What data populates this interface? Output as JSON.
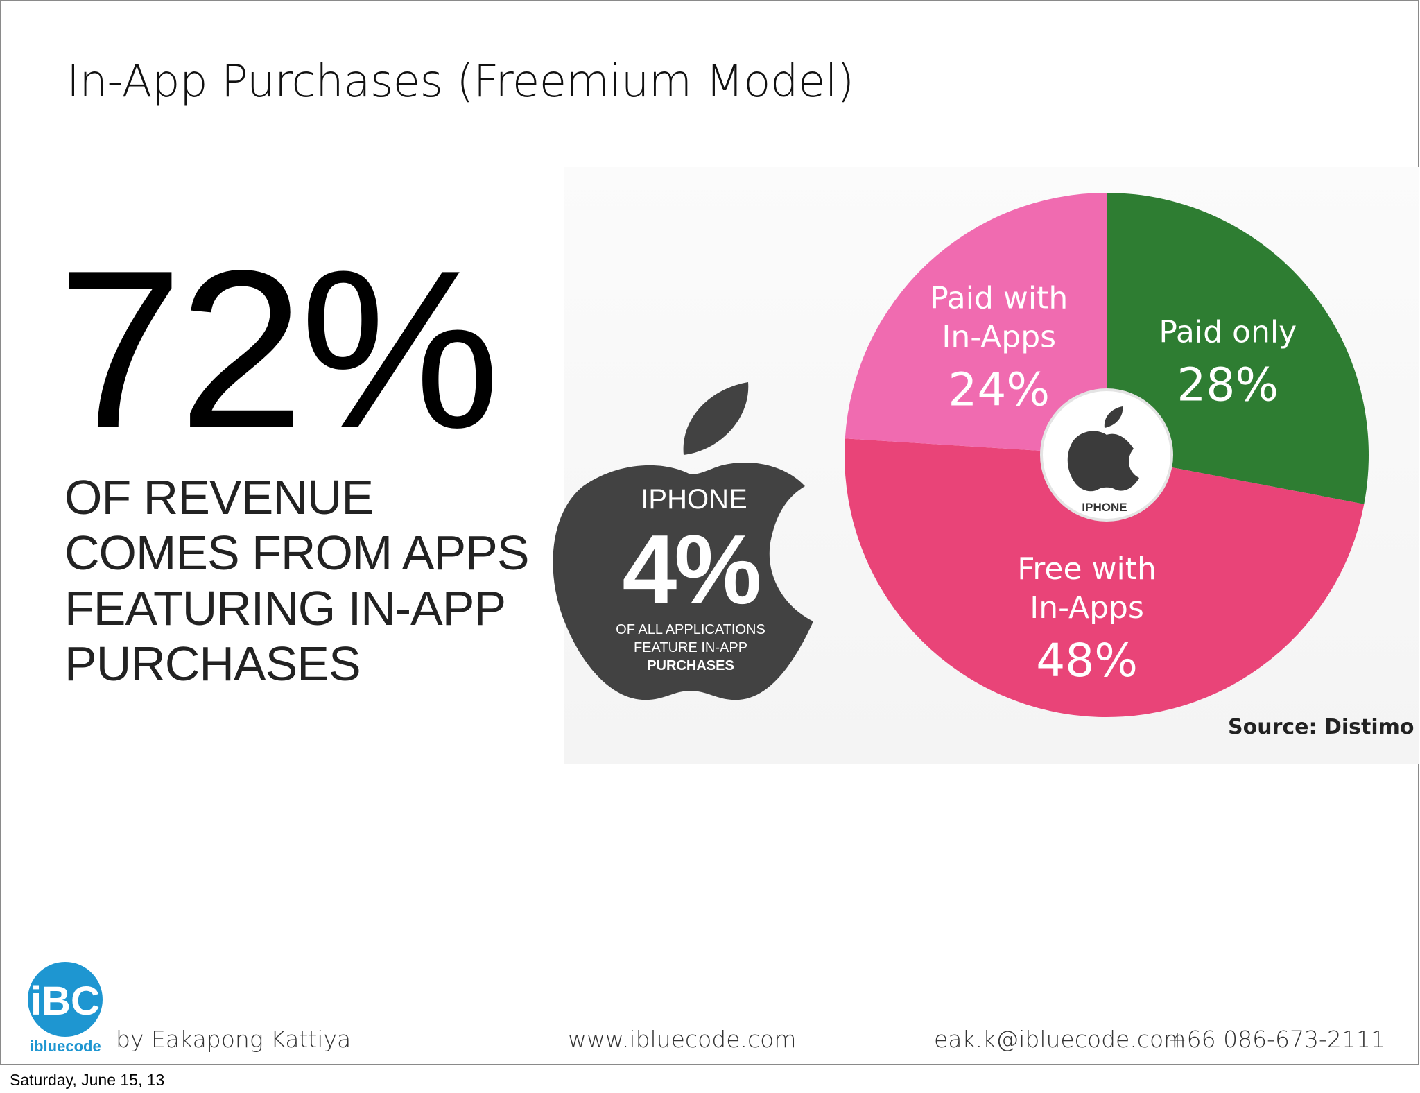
{
  "slide": {
    "title": "In-App Purchases (Freemium Model)"
  },
  "headline_stat": {
    "value": "72%",
    "caption": "OF REVENUE\nCOMES FROM APPS\nFEATURING IN-APP\nPURCHASES"
  },
  "apple_badge": {
    "device": "IPHONE",
    "value": "4%",
    "description_line1": "OF ALL APPLICATIONS",
    "description_line2": "FEATURE IN-APP",
    "description_line3": "PURCHASES",
    "color": "#424242",
    "icon": "apple-logo-icon"
  },
  "chart_data": {
    "type": "pie",
    "center_label": "IPHONE",
    "center_icon": "apple-logo-icon",
    "slices": [
      {
        "label_line1": "Paid only",
        "label_line2": "",
        "value": 28,
        "display": "28%",
        "color": "#2e7d32"
      },
      {
        "label_line1": "Free with",
        "label_line2": "In-Apps",
        "value": 48,
        "display": "48%",
        "color": "#e94478"
      },
      {
        "label_line1": "Paid with",
        "label_line2": "In-Apps",
        "value": 24,
        "display": "24%",
        "color": "#f06bb0"
      }
    ],
    "source": "Source: Distimo"
  },
  "footer": {
    "logo_text": "ibluecode",
    "logo_mark": "iBC",
    "logo_color": "#1e96d1",
    "author": "by Eakapong Kattiya",
    "website": "www.ibluecode.com",
    "email": "eak.k@ibluecode.com",
    "phone": "+66 086-673-2111"
  },
  "date_stamp": "Saturday, June 15, 13"
}
